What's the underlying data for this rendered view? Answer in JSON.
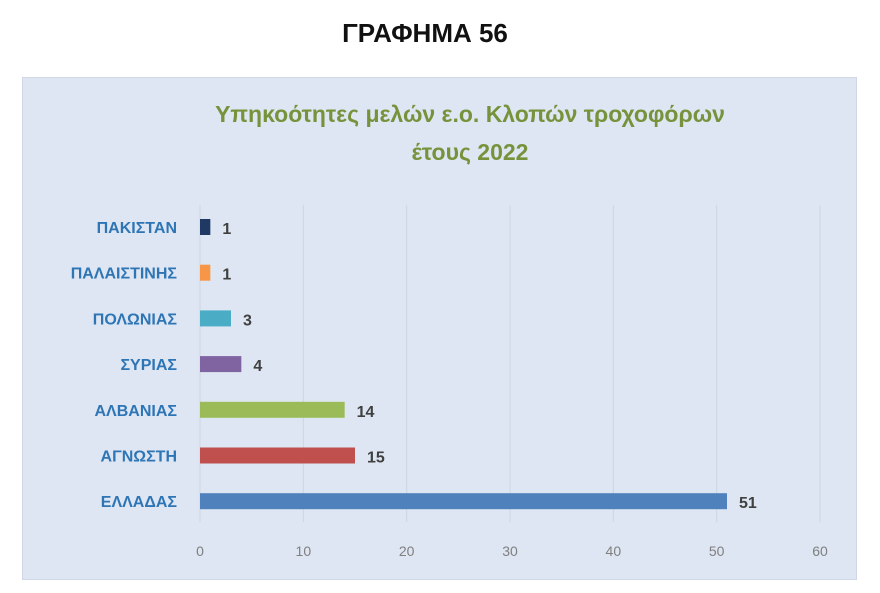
{
  "heading": "ΓΡΑΦΗΜΑ 56",
  "chart_data": {
    "type": "bar",
    "orientation": "horizontal",
    "title_line1": "Υπηκοότητες μελών ε.ο. Κλοπών τροχοφόρων",
    "title_line2": "έτους 2022",
    "categories": [
      "ΠΑΚΙΣΤΑΝ",
      "ΠΑΛΑΙΣΤΙΝΗΣ",
      "ΠΟΛΩΝΙΑΣ",
      "ΣΥΡΙΑΣ",
      "ΑΛΒΑΝΙΑΣ",
      "ΑΓΝΩΣΤΗ",
      "ΕΛΛΑΔΑΣ"
    ],
    "values": [
      1,
      1,
      3,
      4,
      14,
      15,
      51
    ],
    "colors": [
      "#1f3864",
      "#f79646",
      "#4bacc6",
      "#8064a2",
      "#9bbb59",
      "#c0504d",
      "#4f81bd"
    ],
    "xlim": [
      0,
      60
    ],
    "xticks": [
      "0",
      "10",
      "20",
      "30",
      "40",
      "50",
      "60"
    ],
    "grid": true,
    "data_labels": true,
    "title_color": "#76933c",
    "category_label_color": "#2e75b6"
  }
}
